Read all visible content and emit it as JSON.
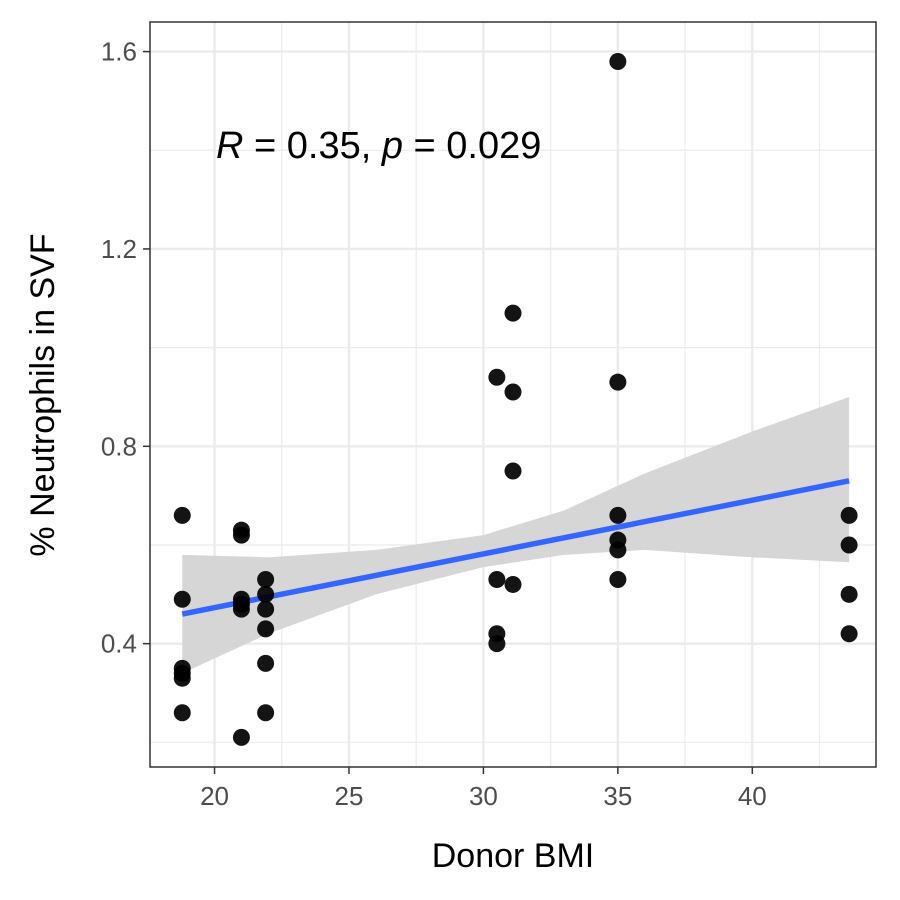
{
  "chart_data": {
    "type": "scatter",
    "xlabel": "Donor BMI",
    "ylabel": "% Neutrophils in SVF",
    "xlim": [
      17.6,
      44.6
    ],
    "ylim": [
      0.15,
      1.66
    ],
    "x_ticks": [
      20,
      25,
      30,
      35,
      40
    ],
    "y_ticks": [
      0.4,
      0.8,
      1.2,
      1.6
    ],
    "x_tick_labels": [
      "20",
      "25",
      "30",
      "35",
      "40"
    ],
    "y_tick_labels": [
      "0.4",
      "0.8",
      "1.2",
      "1.6"
    ],
    "grid": true,
    "annotation": {
      "r_label": "R",
      "r_value": " = 0.35, ",
      "p_label": "p",
      "p_value": " = 0.029"
    },
    "points": [
      {
        "x": 18.8,
        "y": 0.66
      },
      {
        "x": 18.8,
        "y": 0.49
      },
      {
        "x": 18.8,
        "y": 0.35
      },
      {
        "x": 18.8,
        "y": 0.34
      },
      {
        "x": 18.8,
        "y": 0.33
      },
      {
        "x": 18.8,
        "y": 0.26
      },
      {
        "x": 21.0,
        "y": 0.63
      },
      {
        "x": 21.0,
        "y": 0.62
      },
      {
        "x": 21.0,
        "y": 0.49
      },
      {
        "x": 21.0,
        "y": 0.48
      },
      {
        "x": 21.0,
        "y": 0.47
      },
      {
        "x": 21.0,
        "y": 0.21
      },
      {
        "x": 21.9,
        "y": 0.53
      },
      {
        "x": 21.9,
        "y": 0.5
      },
      {
        "x": 21.9,
        "y": 0.47
      },
      {
        "x": 21.9,
        "y": 0.43
      },
      {
        "x": 21.9,
        "y": 0.36
      },
      {
        "x": 21.9,
        "y": 0.26
      },
      {
        "x": 30.5,
        "y": 0.94
      },
      {
        "x": 30.5,
        "y": 0.53
      },
      {
        "x": 30.5,
        "y": 0.42
      },
      {
        "x": 30.5,
        "y": 0.4
      },
      {
        "x": 31.1,
        "y": 1.07
      },
      {
        "x": 31.1,
        "y": 0.91
      },
      {
        "x": 31.1,
        "y": 0.75
      },
      {
        "x": 31.1,
        "y": 0.52
      },
      {
        "x": 35.0,
        "y": 1.58
      },
      {
        "x": 35.0,
        "y": 0.93
      },
      {
        "x": 35.0,
        "y": 0.66
      },
      {
        "x": 35.0,
        "y": 0.61
      },
      {
        "x": 35.0,
        "y": 0.59
      },
      {
        "x": 35.0,
        "y": 0.53
      },
      {
        "x": 43.6,
        "y": 0.66
      },
      {
        "x": 43.6,
        "y": 0.6
      },
      {
        "x": 43.6,
        "y": 0.5
      },
      {
        "x": 43.6,
        "y": 0.42
      }
    ],
    "fit": {
      "x": [
        18.8,
        43.6
      ],
      "y": [
        0.46,
        0.73
      ],
      "ci_x": [
        18.8,
        22.0,
        26.0,
        30.0,
        33.0,
        36.0,
        40.0,
        43.6
      ],
      "ci_lower": [
        0.34,
        0.42,
        0.5,
        0.555,
        0.58,
        0.59,
        0.575,
        0.565
      ],
      "ci_upper": [
        0.58,
        0.575,
        0.59,
        0.62,
        0.67,
        0.745,
        0.83,
        0.9
      ]
    },
    "colors": {
      "points": "#000000",
      "fit_line": "#3366ff",
      "ci_band": "#d4d4d4",
      "grid": "#ebebeb",
      "panel_border": "#333333"
    }
  }
}
